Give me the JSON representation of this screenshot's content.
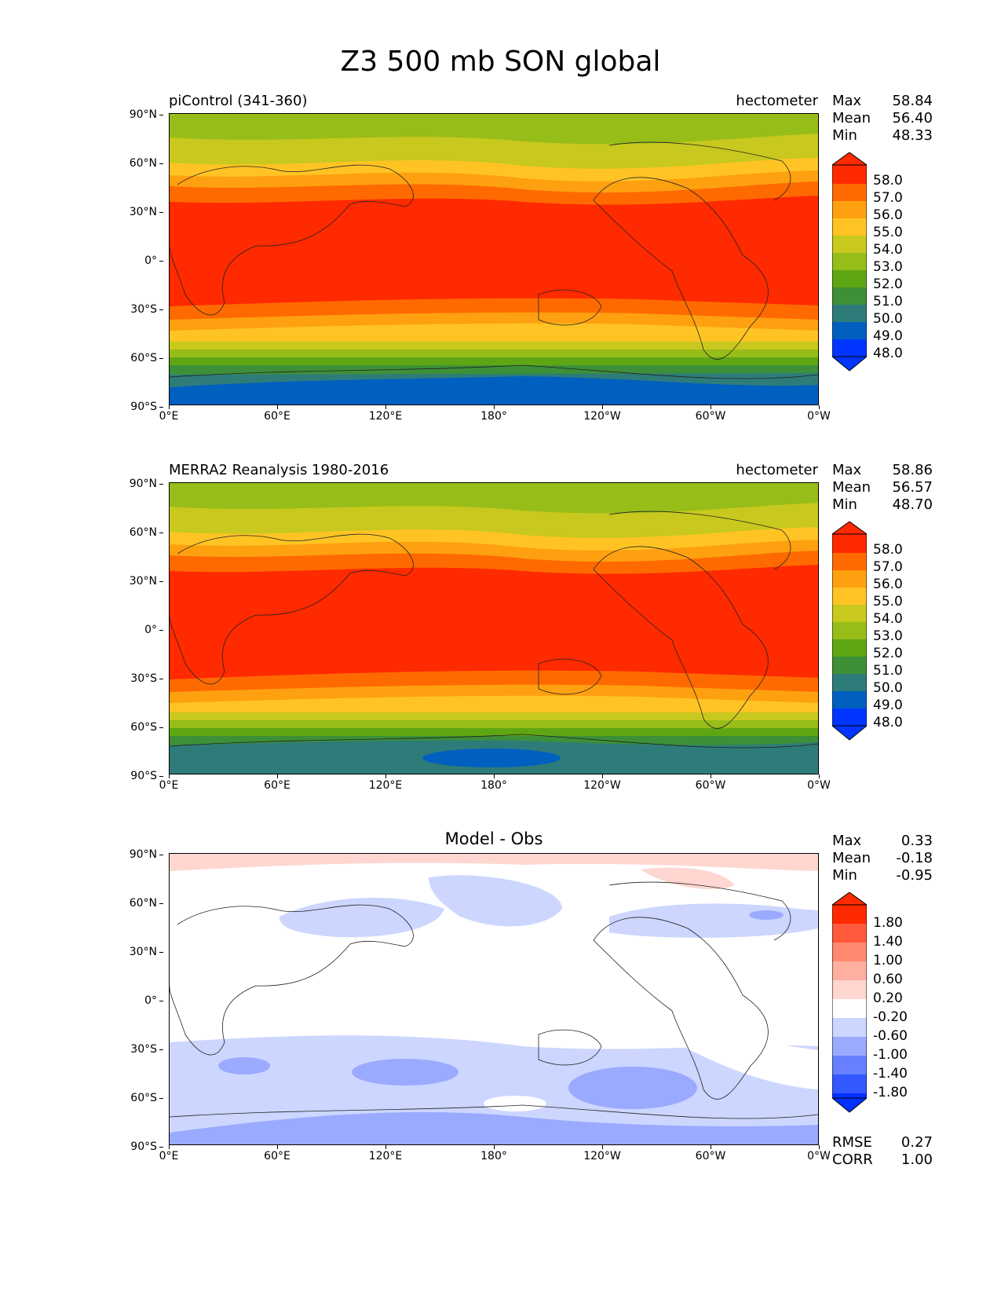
{
  "title": "Z3 500 mb SON global",
  "x_ticks": [
    "0°E",
    "60°E",
    "120°E",
    "180°",
    "120°W",
    "60°W",
    "0°W"
  ],
  "y_ticks": [
    "90°N",
    "60°N",
    "30°N",
    "0°",
    "30°S",
    "60°S",
    "90°S"
  ],
  "panels": [
    {
      "label": "piControl (341-360)",
      "units": "hectometer",
      "stats": [
        {
          "name": "Max",
          "value": "58.84"
        },
        {
          "name": "Mean",
          "value": "56.40"
        },
        {
          "name": "Min",
          "value": "48.33"
        }
      ],
      "colorbar_levels": [
        "58.0",
        "57.0",
        "56.0",
        "55.0",
        "54.0",
        "53.0",
        "52.0",
        "51.0",
        "50.0",
        "49.0",
        "48.0"
      ]
    },
    {
      "label": "MERRA2 Reanalysis 1980-2016",
      "units": "hectometer",
      "stats": [
        {
          "name": "Max",
          "value": "58.86"
        },
        {
          "name": "Mean",
          "value": "56.57"
        },
        {
          "name": "Min",
          "value": "48.70"
        }
      ],
      "colorbar_levels": [
        "58.0",
        "57.0",
        "56.0",
        "55.0",
        "54.0",
        "53.0",
        "52.0",
        "51.0",
        "50.0",
        "49.0",
        "48.0"
      ]
    },
    {
      "label": "Model - Obs",
      "stats": [
        {
          "name": "Max",
          "value": "0.33"
        },
        {
          "name": "Mean",
          "value": "-0.18"
        },
        {
          "name": "Min",
          "value": "-0.95"
        }
      ],
      "colorbar_levels": [
        "1.80",
        "1.40",
        "1.00",
        "0.60",
        "0.20",
        "-0.20",
        "-0.60",
        "-1.00",
        "-1.40",
        "-1.80"
      ],
      "metrics": [
        {
          "name": "RMSE",
          "value": "0.27"
        },
        {
          "name": "CORR",
          "value": "1.00"
        }
      ]
    }
  ],
  "colors": {
    "abs_scale": [
      "#ff2a00",
      "#ff6a00",
      "#ffa010",
      "#ffc424",
      "#c8c81e",
      "#97bd18",
      "#5ea614",
      "#3d9038",
      "#2e7c79",
      "#0060bf",
      "#0036ff"
    ],
    "diff_scale": [
      "#ff2a00",
      "#ff5a3c",
      "#ff8870",
      "#ffb0a0",
      "#ffd6d0",
      "#ffffff",
      "#ccd6ff",
      "#9aaaff",
      "#6680ff",
      "#3358ff",
      "#0030ff"
    ]
  }
}
